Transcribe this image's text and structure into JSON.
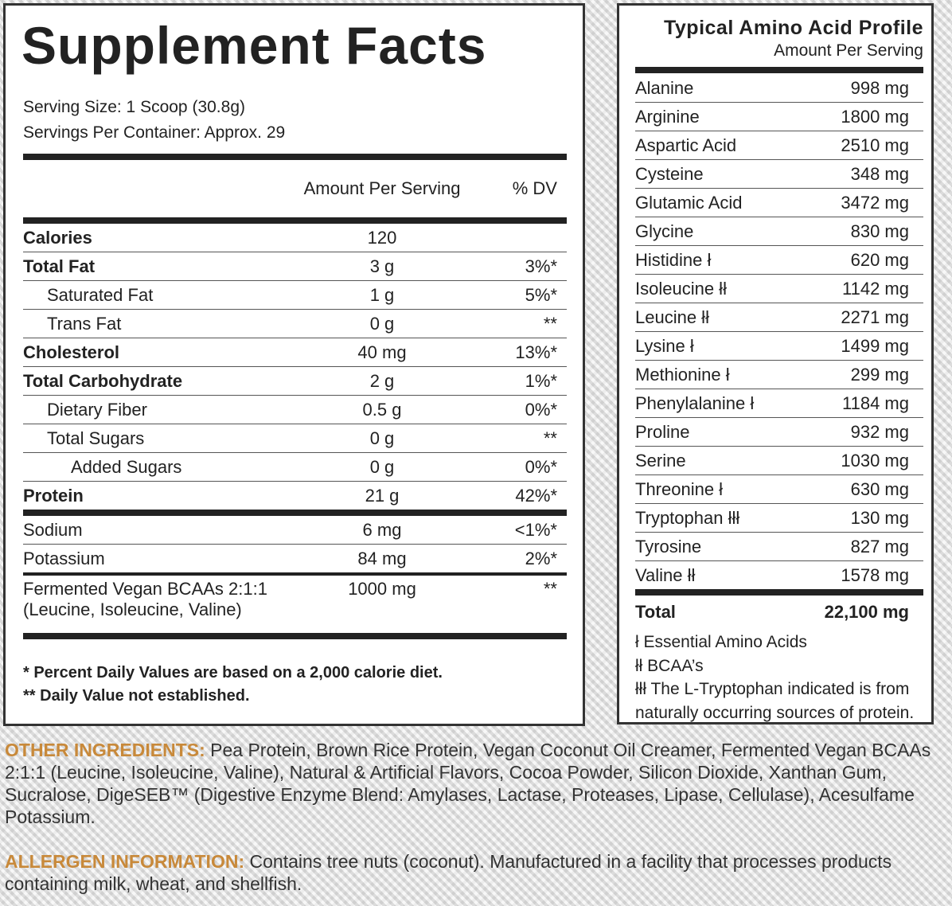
{
  "supplement_facts": {
    "title": "Supplement Facts",
    "serving_size": "Serving Size: 1 Scoop (30.8g)",
    "servings_per_container": "Servings Per Container: Approx. 29",
    "header": {
      "amount": "Amount Per Serving",
      "dv": "% DV"
    },
    "rows": [
      [
        "Calories",
        "120",
        null
      ],
      [
        "Total Fat",
        "3 g",
        "3%*"
      ],
      [
        "Saturated Fat",
        "1 g",
        "5%*"
      ],
      [
        "Trans Fat",
        "0 g",
        "**"
      ],
      [
        "Cholesterol",
        "40 mg",
        "13%*"
      ],
      [
        "Total Carbohydrate",
        "2 g",
        "1%*"
      ],
      [
        "Dietary Fiber",
        "0.5 g",
        "0%*"
      ],
      [
        "Total Sugars",
        "0 g",
        "**"
      ],
      [
        "Added Sugars",
        "0 g",
        "0%*"
      ],
      [
        "Protein",
        "21 g",
        "42%*"
      ],
      [
        "Sodium",
        "6 mg",
        "<1%*"
      ],
      [
        "Potassium",
        "84 mg",
        "2%*"
      ],
      [
        "Fermented Vegan BCAAs 2:1:1\n(Leucine, Isoleucine, Valine)",
        "1000 mg",
        "**"
      ]
    ],
    "footnotes": [
      "* Percent Daily Values are based on a 2,000 calorie diet.",
      "** Daily Value not established."
    ]
  },
  "amino_profile": {
    "title": "Typical Amino Acid Profile",
    "subtitle": "Amount Per Serving",
    "rows": [
      [
        "Alanine",
        "998 mg"
      ],
      [
        "Arginine",
        "1800 mg"
      ],
      [
        "Aspartic Acid",
        "2510 mg"
      ],
      [
        "Cysteine",
        "348 mg"
      ],
      [
        "Glutamic Acid",
        "3472 mg"
      ],
      [
        "Glycine",
        "830 mg"
      ],
      [
        "Histidine ł",
        "620 mg"
      ],
      [
        "Isoleucine łł",
        "1142 mg"
      ],
      [
        "Leucine łł",
        "2271 mg"
      ],
      [
        "Lysine ł",
        "1499 mg"
      ],
      [
        "Methionine ł",
        "299 mg"
      ],
      [
        "Phenylalanine ł",
        "1184 mg"
      ],
      [
        "Proline",
        "932 mg"
      ],
      [
        "Serine",
        "1030 mg"
      ],
      [
        "Threonine ł",
        "630 mg"
      ],
      [
        "Tryptophan łłł",
        "130 mg"
      ],
      [
        "Tyrosine",
        "827 mg"
      ],
      [
        "Valine łł",
        "1578 mg"
      ]
    ],
    "total": [
      "Total",
      "22,100 mg"
    ],
    "legend": [
      "ł Essential Amino Acids",
      "łł BCAA’s",
      "łłł The L-Tryptophan indicated is from naturally occurring sources of protein."
    ]
  },
  "other_ingredients": {
    "label": "OTHER INGREDIENTS:",
    "text": "Pea Protein, Brown Rice Protein, Vegan Coconut Oil Creamer, Fermented Vegan BCAAs 2:1:1 (Leucine, Isoleucine, Valine), Natural & Artificial Flavors, Cocoa Powder, Silicon Dioxide, Xanthan Gum, Sucralose, DigeSEB™ (Digestive Enzyme Blend: Amylases, Lactase, Proteases, Lipase, Cellulase), Acesulfame Potassium."
  },
  "allergen": {
    "label": "ALLERGEN INFORMATION:",
    "text": "Contains tree nuts (coconut). Manufactured in a facility that processes products containing milk, wheat, and shellfish."
  }
}
